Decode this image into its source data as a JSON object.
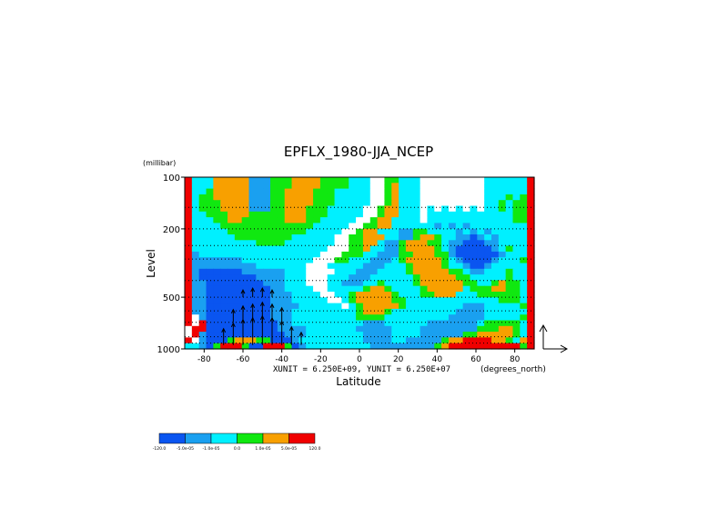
{
  "chart_data": {
    "type": "heatmap",
    "title": "EPFLX_1980-JJA_NCEP",
    "xlabel": "Latitude",
    "ylabel": "Level",
    "y_unit": "(millibar)",
    "x_unit": "(degrees_north)",
    "vector_scale_text": "XUNIT = 6.250E+09, YUNIT = 6.250E+07",
    "xlim": [
      -90,
      90
    ],
    "ylim": [
      1000,
      100
    ],
    "y_scale": "log",
    "x_ticks": [
      "-80",
      "-60",
      "-40",
      "-20",
      "0",
      "20",
      "40",
      "60",
      "80"
    ],
    "x_tick_values": [
      -80,
      -60,
      -40,
      -20,
      0,
      20,
      40,
      60,
      80
    ],
    "y_ticks": [
      "100",
      "200",
      "500",
      "1000"
    ],
    "y_tick_values": [
      100,
      200,
      500,
      1000
    ],
    "levels_mb": [
      100,
      150,
      200,
      250,
      300,
      400,
      500,
      600,
      700,
      850,
      925,
      1000
    ],
    "colorbar": {
      "colors": [
        "#0a55f0",
        "#1aa0f0",
        "#00f0ff",
        "#ffffff",
        "#10e810",
        "#f8a000",
        "#f00000"
      ],
      "labels": [
        "-120.0",
        "-5.0e-05",
        "-1.0e-05",
        "0.0",
        "1.0e-05",
        "5.0e-05",
        "120.0"
      ]
    },
    "class_map": {
      "n": "#0a55f0",
      "m": "#1aa0f0",
      "c": "#00f0ff",
      "w": "#ffffff",
      "g": "#10e810",
      "o": "#f8a000",
      "r": "#f00000"
    },
    "lat_bins_deg": 5,
    "lat_start": -90,
    "rows": [
      "rcccooooommmgggooooggggcccwwggcccwwwwwwwwwccccccr",
      "rcccooooommmgggooooggggcccwwgocccwwwwwwwwwccccccr",
      "rccgooooommmggoooogggcccccwwgocccwwwwwwwwwccccccr",
      "rcggooooommmggoooogggcccccwwgocccwwwwwwwwwcccgcgr",
      "rcgggoooommmggoooogggcccccwwgocccwwwwwwwwwccgcggr",
      "rcgggoooommmggooogggcccccwwgoocccwcwcwcwcwccgcggr",
      "rccgggooogggggooogggcccccwwgoocccwccccccccccccggr",
      "rcccggooggggggoooggcccccwwgooccccwccccccccccccggr",
      "rccccgggggggggggggcccccwwggooccccccmcmcmccccccccr",
      "rcccccgggggggggggcccccwwgoocccmmggccccmcmcmcccccr",
      "rccccccggggggggccccccwwggoooccmmgoogccmmnmcmccccr",
      "rcccccccccggggcccccccwwggoocmmgoooggcmmnnnmmccccr",
      "rcccccccccccccccccccwwwggoccmmgoooogcmnnnnnmcgccr",
      "rmcccccccccccccccccwwwgggccmmmggoooggmnnnnnnmcccr",
      "rmmmmmmmccccccccccwwwggcccmmmcgooooogcmnnnnmcccgr",
      "rmmmmmmmmmcccccccwwwcccccmmmcccgoooogccmnnmcccccr",
      "rmnnnnnnmmmmmmcccwwwwcccmmmccccgoooooggcmmcccgccr",
      "rmnnnnnnnnmmmmcccwwwcccmmmccccccgoooooggcccccgccr",
      "rmmnnnnnnnnmmmcccwwwccmmmccgccccgooooooggccgoggcr",
      "rmmnnnnnnnnnmmccccwwcccccgoogccccgooooocgggooggcr",
      "rmmnnnnnnnnnmmmccccwwccgooooogcccggooocccggggggcr",
      "rmmnnnnnnnnnmmmcccccwwcgoooooggcccccccccccccgggcr",
      "rmmnnnnnnnnnmmmmccccccwcgooooogccccccccmmmcccccgr",
      "rmmnnnnnnnnnmmmcccccccccgooogcccccccccmmmmccccccr",
      "rwmnnnnnnnnnmmmcccccccccggggcccccccccmmmmmcccccgr",
      "rwrnnnnnnnnnnmmccccccccccmmmccccccmmmmmmmcgggggcr",
      "wrrnnnnnnnnnnmmmmcccccccmmmmmccccmmmmmmmmgggoogcr",
      "wrmnnnnnnnnnnnmmmccccccccmmmmccccmmmmmmggooooogcr",
      "rwmnnngoooggnnnmcccccccccmmmmccmmmmmgoorrrroogcor",
      "ccmngrrrgnnrrrgnmcccccccccmmmmmmmmmgorrrrrrrrrrgr"
    ],
    "vectors": [
      {
        "lat": -70,
        "p": 950,
        "dx": 0,
        "dy": 18
      },
      {
        "lat": -65,
        "p": 950,
        "dx": 0,
        "dy": 24
      },
      {
        "lat": -60,
        "p": 950,
        "dx": 0,
        "dy": 28
      },
      {
        "lat": -55,
        "p": 950,
        "dx": 0,
        "dy": 30
      },
      {
        "lat": -50,
        "p": 950,
        "dx": 0,
        "dy": 32
      },
      {
        "lat": -45,
        "p": 950,
        "dx": 0,
        "dy": 30
      },
      {
        "lat": -40,
        "p": 950,
        "dx": 0,
        "dy": 26
      },
      {
        "lat": -35,
        "p": 950,
        "dx": 0,
        "dy": 20
      },
      {
        "lat": -30,
        "p": 950,
        "dx": 0,
        "dy": 14
      },
      {
        "lat": -65,
        "p": 700,
        "dx": 0,
        "dy": 14
      },
      {
        "lat": -60,
        "p": 700,
        "dx": 0,
        "dy": 18
      },
      {
        "lat": -55,
        "p": 700,
        "dx": 0,
        "dy": 20
      },
      {
        "lat": -50,
        "p": 700,
        "dx": 0,
        "dy": 22
      },
      {
        "lat": -45,
        "p": 700,
        "dx": 0,
        "dy": 20
      },
      {
        "lat": -40,
        "p": 700,
        "dx": 0,
        "dy": 16
      },
      {
        "lat": -60,
        "p": 500,
        "dx": 0,
        "dy": 8
      },
      {
        "lat": -55,
        "p": 500,
        "dx": 0,
        "dy": 10
      },
      {
        "lat": -50,
        "p": 500,
        "dx": 0,
        "dy": 10
      },
      {
        "lat": -45,
        "p": 500,
        "dx": 0,
        "dy": 8
      }
    ]
  }
}
